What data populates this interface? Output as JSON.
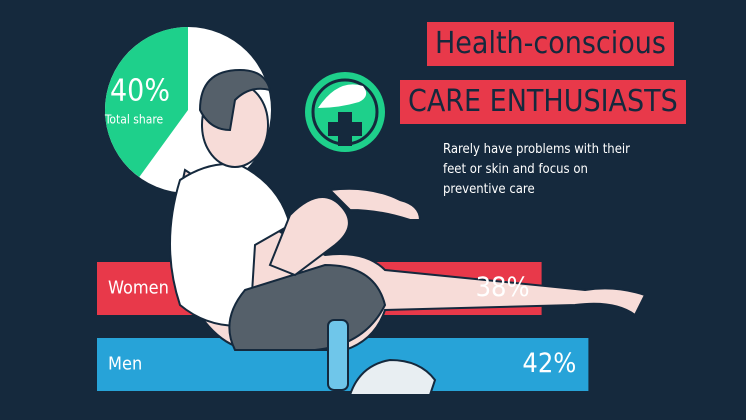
{
  "chart_data": [
    {
      "type": "pie",
      "categories": [
        "Total share"
      ],
      "values": [
        40
      ],
      "value_labels": [
        "40%"
      ],
      "color": "#1ed08b"
    },
    {
      "type": "bar",
      "title": "Health-conscious",
      "subtitle": "CARE ENTHUSIASTS",
      "description": "Rarely have problems with their feet or skin and focus on preventive care",
      "categories": [
        "Women",
        "Men"
      ],
      "values": [
        38,
        42
      ],
      "value_labels": [
        "38%",
        "42%"
      ],
      "colors": [
        "#e8394a",
        "#27a3d8"
      ]
    }
  ]
}
